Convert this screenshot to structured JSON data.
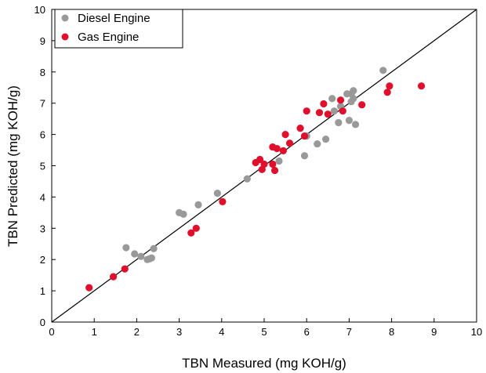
{
  "chart_data": {
    "type": "scatter",
    "title": "",
    "xlabel": "TBN Measured (mg KOH/g)",
    "ylabel": "TBN Predicted (mg KOH/g)",
    "xlim": [
      0,
      10
    ],
    "ylim": [
      0,
      10
    ],
    "xticks": [
      "0",
      "1",
      "2",
      "3",
      "4",
      "5",
      "6",
      "7",
      "8",
      "9",
      "10"
    ],
    "yticks": [
      "0",
      "1",
      "2",
      "3",
      "4",
      "5",
      "6",
      "7",
      "8",
      "9",
      "10"
    ],
    "grid": false,
    "legend_position": "top-left",
    "reference_line": {
      "x": [
        0,
        10
      ],
      "y": [
        0,
        10
      ],
      "color": "#000000"
    },
    "series": [
      {
        "name": "Diesel Engine",
        "color": "#999999",
        "x": [
          1.75,
          1.95,
          2.1,
          2.25,
          2.3,
          2.35,
          2.4,
          3.0,
          3.1,
          3.45,
          3.9,
          4.6,
          5.35,
          5.95,
          6.0,
          6.25,
          6.45,
          6.6,
          6.65,
          6.75,
          6.8,
          6.95,
          7.0,
          7.05,
          7.05,
          7.1,
          7.1,
          7.15,
          7.8
        ],
        "y": [
          2.38,
          2.18,
          2.1,
          2.0,
          2.02,
          2.05,
          2.35,
          3.5,
          3.45,
          3.75,
          4.12,
          4.58,
          5.15,
          5.32,
          5.95,
          5.7,
          5.85,
          7.15,
          6.75,
          6.38,
          6.9,
          7.3,
          6.45,
          7.05,
          7.3,
          7.15,
          7.4,
          6.32,
          8.05
        ]
      },
      {
        "name": "Gas Engine",
        "color": "#e0102c",
        "x": [
          0.88,
          1.45,
          1.72,
          3.28,
          3.4,
          4.02,
          4.8,
          4.9,
          4.95,
          5.0,
          5.2,
          5.2,
          5.25,
          5.3,
          5.45,
          5.5,
          5.6,
          5.85,
          5.95,
          6.0,
          6.3,
          6.4,
          6.5,
          6.8,
          6.85,
          7.3,
          7.9,
          7.95,
          8.7
        ],
        "y": [
          1.1,
          1.45,
          1.7,
          2.85,
          3.0,
          3.85,
          5.1,
          5.2,
          4.88,
          5.05,
          5.05,
          5.6,
          4.85,
          5.55,
          5.48,
          6.0,
          5.72,
          6.2,
          5.95,
          6.75,
          6.7,
          6.98,
          6.65,
          7.1,
          6.75,
          6.95,
          7.35,
          7.55,
          7.55
        ]
      }
    ]
  }
}
